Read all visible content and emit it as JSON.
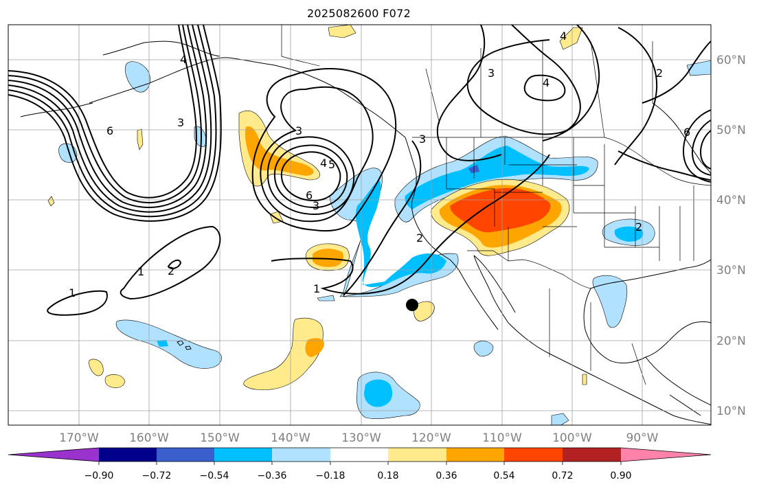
{
  "title": "2025082600 F072",
  "lon_labels": [
    "170°W",
    "160°W",
    "150°W",
    "140°W",
    "130°W",
    "120°W",
    "110°W",
    "100°W",
    "90°W"
  ],
  "lat_labels": [
    "60°N",
    "50°N",
    "40°N",
    "30°N",
    "20°N",
    "10°N"
  ],
  "colorbar": {
    "tick_labels": [
      "−0.90",
      "−0.72",
      "−0.54",
      "−0.36",
      "−0.18",
      "0.18",
      "0.36",
      "0.54",
      "0.72",
      "0.90"
    ],
    "colors": [
      "#9a32cd",
      "#00008b",
      "#3a5fcd",
      "#00bfff",
      "#b0e2ff",
      "#ffffff",
      "#ffeb8b",
      "#ffa500",
      "#ff4500",
      "#b22222",
      "#ff82ab"
    ]
  },
  "contour_labels": [
    "1",
    "1",
    "2",
    "1",
    "2",
    "3",
    "3",
    "6",
    "4",
    "5",
    "6",
    "3",
    "2",
    "2",
    "3",
    "3",
    "4",
    "4",
    "4",
    "6"
  ],
  "marker": "station-dot"
}
